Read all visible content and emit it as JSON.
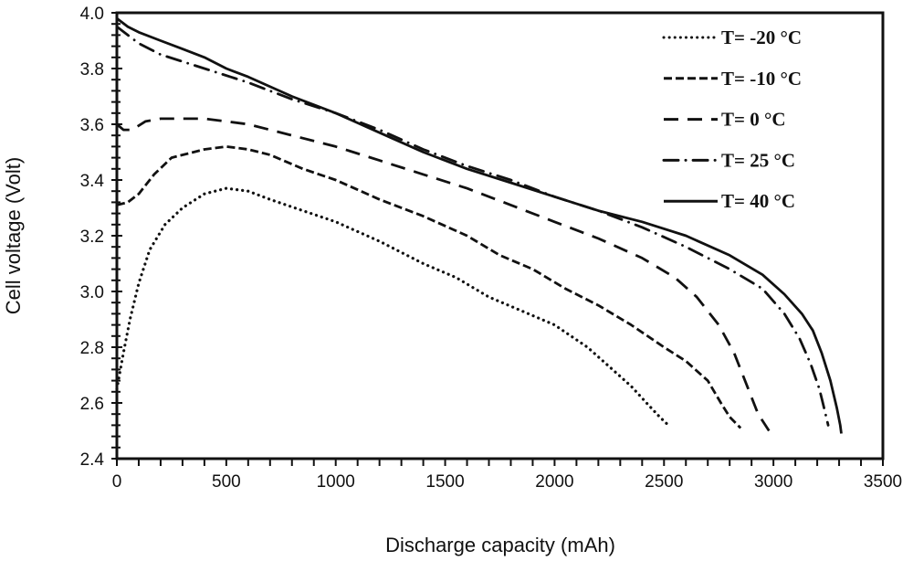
{
  "chart_data": {
    "type": "line",
    "title": "",
    "xlabel": "Discharge capacity (mAh)",
    "ylabel": "Cell voltage (Volt)",
    "xlim": [
      0,
      3500
    ],
    "ylim": [
      2.4,
      4.0
    ],
    "xticks": [
      "0",
      "500",
      "1000",
      "1500",
      "2000",
      "2500",
      "3000",
      "3500"
    ],
    "yticks": [
      "2.4",
      "2.6",
      "2.8",
      "3.0",
      "3.2",
      "3.4",
      "3.6",
      "3.8",
      "4.0"
    ],
    "grid": false,
    "legend_position": "top-right",
    "line_color": "#111111",
    "series": [
      {
        "name": "T= -20 °C",
        "style": "dotted",
        "x": [
          0,
          30,
          60,
          100,
          150,
          220,
          300,
          400,
          500,
          600,
          700,
          850,
          1000,
          1200,
          1400,
          1550,
          1700,
          1850,
          2000,
          2150,
          2250,
          2350,
          2420,
          2480,
          2520
        ],
        "y": [
          2.65,
          2.78,
          2.9,
          3.03,
          3.15,
          3.24,
          3.3,
          3.35,
          3.37,
          3.36,
          3.33,
          3.29,
          3.25,
          3.18,
          3.1,
          3.05,
          2.98,
          2.93,
          2.88,
          2.8,
          2.73,
          2.66,
          2.6,
          2.55,
          2.52
        ]
      },
      {
        "name": "T= -10 °C",
        "style": "short-dash",
        "x": [
          0,
          50,
          100,
          170,
          250,
          400,
          500,
          600,
          700,
          850,
          1000,
          1200,
          1400,
          1600,
          1750,
          1900,
          2050,
          2200,
          2350,
          2500,
          2600,
          2700,
          2760,
          2800,
          2850
        ],
        "y": [
          3.31,
          3.32,
          3.35,
          3.42,
          3.48,
          3.51,
          3.52,
          3.51,
          3.49,
          3.44,
          3.4,
          3.33,
          3.27,
          3.2,
          3.13,
          3.08,
          3.01,
          2.95,
          2.88,
          2.8,
          2.75,
          2.68,
          2.6,
          2.55,
          2.51
        ]
      },
      {
        "name": "T= 0 °C",
        "style": "long-dash",
        "x": [
          0,
          30,
          70,
          130,
          200,
          300,
          400,
          500,
          600,
          800,
          1000,
          1200,
          1400,
          1600,
          1800,
          2000,
          2200,
          2400,
          2550,
          2650,
          2750,
          2820,
          2880,
          2930,
          2980
        ],
        "y": [
          3.6,
          3.58,
          3.58,
          3.61,
          3.62,
          3.62,
          3.62,
          3.61,
          3.6,
          3.56,
          3.52,
          3.47,
          3.42,
          3.37,
          3.31,
          3.25,
          3.19,
          3.12,
          3.05,
          2.98,
          2.88,
          2.78,
          2.66,
          2.56,
          2.5
        ]
      },
      {
        "name": "T= 25 °C",
        "style": "dash-dot",
        "x": [
          0,
          50,
          100,
          200,
          400,
          600,
          800,
          1000,
          1200,
          1400,
          1600,
          1800,
          2000,
          2200,
          2400,
          2600,
          2800,
          2950,
          3050,
          3120,
          3170,
          3210,
          3235,
          3250
        ],
        "y": [
          3.95,
          3.92,
          3.89,
          3.85,
          3.8,
          3.75,
          3.69,
          3.64,
          3.58,
          3.51,
          3.45,
          3.4,
          3.34,
          3.29,
          3.23,
          3.16,
          3.08,
          3.01,
          2.92,
          2.83,
          2.74,
          2.65,
          2.57,
          2.52
        ]
      },
      {
        "name": "T= 40 °C",
        "style": "solid",
        "x": [
          0,
          50,
          100,
          200,
          300,
          400,
          500,
          600,
          800,
          1000,
          1200,
          1400,
          1600,
          1800,
          2000,
          2200,
          2400,
          2600,
          2800,
          2950,
          3050,
          3130,
          3180,
          3220,
          3260,
          3290,
          3305,
          3310
        ],
        "y": [
          3.98,
          3.95,
          3.93,
          3.9,
          3.87,
          3.84,
          3.8,
          3.77,
          3.7,
          3.64,
          3.57,
          3.5,
          3.44,
          3.39,
          3.34,
          3.29,
          3.25,
          3.2,
          3.13,
          3.06,
          2.99,
          2.92,
          2.86,
          2.78,
          2.68,
          2.58,
          2.52,
          2.49
        ]
      }
    ]
  }
}
